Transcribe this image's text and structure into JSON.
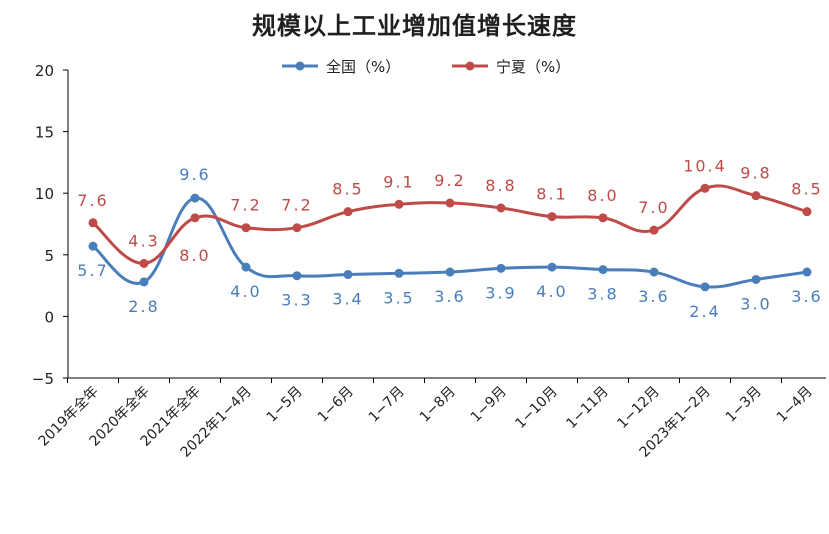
{
  "title": "规模以上工业增加值增长速度",
  "colors": {
    "series1": "#4A7EBB",
    "series2": "#BE4B48",
    "axis": "#000000"
  },
  "chart_data": {
    "type": "line",
    "title": "规模以上工业增加值增长速度",
    "xlabel": "",
    "ylabel": "",
    "ylim": [
      -5,
      20
    ],
    "yticks": [
      -5,
      0,
      5,
      10,
      15,
      20
    ],
    "ytick_labels": [
      "−5",
      "0",
      "5",
      "10",
      "15",
      "20"
    ],
    "grid": false,
    "legend": "top-center",
    "categories": [
      "2019年全年",
      "2020年全年",
      "2021年全年",
      "2022年1−4月",
      "1−5月",
      "1−6月",
      "1−7月",
      "1−8月",
      "1−9月",
      "1−10月",
      "1−11月",
      "1−12月",
      "2023年1−2月",
      "1−3月",
      "1−4月"
    ],
    "series": [
      {
        "name": "全国（%）",
        "values": [
          5.7,
          2.8,
          9.6,
          4.0,
          3.3,
          3.4,
          3.5,
          3.6,
          3.9,
          4.0,
          3.8,
          3.6,
          2.4,
          3.0,
          3.6
        ],
        "labels": [
          "5.7",
          "2.8",
          "9.6",
          "4.0",
          "3.3",
          "3.4",
          "3.5",
          "3.6",
          "3.9",
          "4.0",
          "3.8",
          "3.6",
          "2.4",
          "3.0",
          "3.6"
        ]
      },
      {
        "name": "宁夏（%）",
        "values": [
          7.6,
          4.3,
          8.0,
          7.2,
          7.2,
          8.5,
          9.1,
          9.2,
          8.8,
          8.1,
          8.0,
          7.0,
          10.4,
          9.8,
          8.5
        ],
        "labels": [
          "7.6",
          "4.3",
          "8.0",
          "7.2",
          "7.2",
          "8.5",
          "9.1",
          "9.2",
          "8.8",
          "8.1",
          "8.0",
          "7.0",
          "10.4",
          "9.8",
          "8.5"
        ]
      }
    ]
  }
}
